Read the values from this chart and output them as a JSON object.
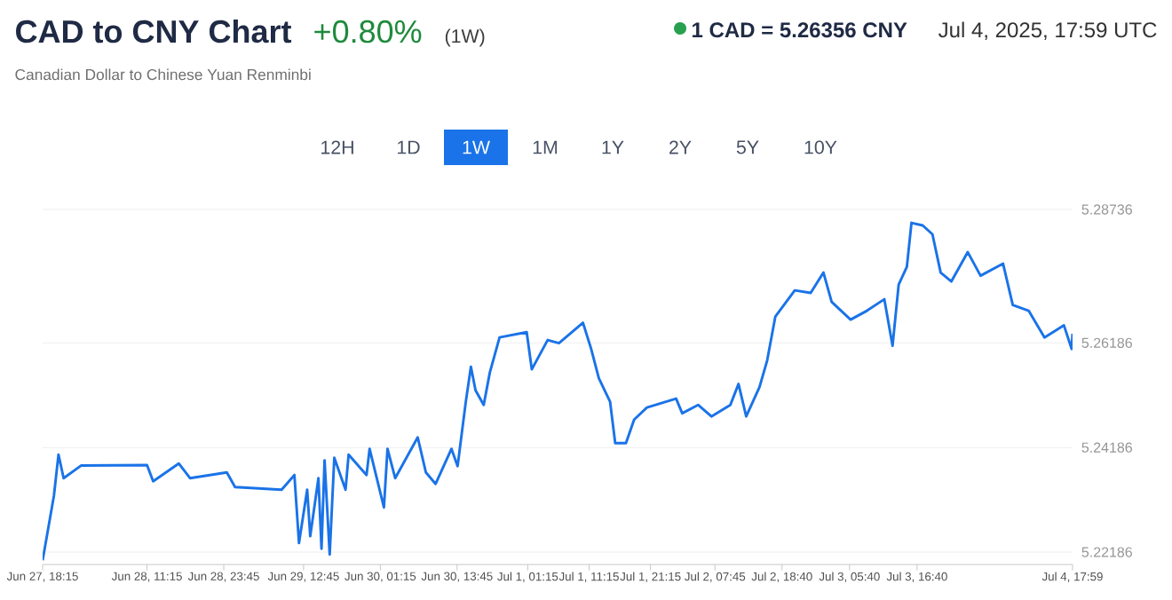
{
  "chart_data": {
    "type": "line",
    "title": "CAD to CNY Chart",
    "subtitle": "Canadian Dollar to Chinese Yuan Renminbi",
    "annotations": [
      "+0.80%",
      "(1W)",
      "1 CAD = 5.26356 CNY",
      "Jul 4, 2025, 17:59 UTC",
      "12H",
      "1D",
      "1W",
      "1M",
      "1Y",
      "2Y",
      "5Y",
      "10Y"
    ],
    "color": "#1a73e8",
    "x": [
      "2025-06-27T18:15",
      "2025-06-27T19:15",
      "2025-06-27T20:05",
      "2025-06-27T20:50",
      "2025-06-27T21:40",
      "2025-06-28T00:30",
      "2025-06-28T11:15",
      "2025-06-28T12:15",
      "2025-06-28T16:25",
      "2025-06-28T18:15",
      "2025-06-29T00:15",
      "2025-06-29T01:35",
      "2025-06-29T09:10",
      "2025-06-29T11:15",
      "2025-06-29T12:00",
      "2025-06-29T13:20",
      "2025-06-29T13:50",
      "2025-06-29T15:10",
      "2025-06-29T15:40",
      "2025-06-29T16:10",
      "2025-06-29T17:00",
      "2025-06-29T17:45",
      "2025-06-29T19:35",
      "2025-06-29T20:05",
      "2025-06-29T23:00",
      "2025-06-29T23:30",
      "2025-06-30T01:50",
      "2025-06-30T02:25",
      "2025-06-30T03:40",
      "2025-06-30T07:20",
      "2025-06-30T08:40",
      "2025-06-30T10:15",
      "2025-06-30T12:50",
      "2025-06-30T13:50",
      "2025-06-30T15:10",
      "2025-06-30T16:00",
      "2025-06-30T16:45",
      "2025-06-30T18:05",
      "2025-06-30T19:05",
      "2025-06-30T20:40",
      "2025-07-01T01:05",
      "2025-07-01T01:55",
      "2025-07-01T04:30",
      "2025-07-01T06:20",
      "2025-07-01T10:15",
      "2025-07-01T11:35",
      "2025-07-01T12:50",
      "2025-07-01T14:40",
      "2025-07-01T15:30",
      "2025-07-01T17:15",
      "2025-07-01T18:35",
      "2025-07-01T20:40",
      "2025-07-02T01:25",
      "2025-07-02T02:25",
      "2025-07-02T05:00",
      "2025-07-02T07:10",
      "2025-07-02T10:15",
      "2025-07-02T11:35",
      "2025-07-02T12:50",
      "2025-07-02T15:00",
      "2025-07-02T16:15",
      "2025-07-02T17:35",
      "2025-07-02T20:45",
      "2025-07-02T23:20",
      "2025-07-03T01:25",
      "2025-07-03T02:45",
      "2025-07-03T05:50",
      "2025-07-03T08:30",
      "2025-07-03T11:20",
      "2025-07-03T12:40",
      "2025-07-03T13:40",
      "2025-07-03T15:00",
      "2025-07-03T15:45",
      "2025-07-03T17:35",
      "2025-07-03T19:10",
      "2025-07-03T20:30",
      "2025-07-03T22:15",
      "2025-07-04T00:55",
      "2025-07-04T03:00",
      "2025-07-04T06:40",
      "2025-07-04T08:15",
      "2025-07-04T10:50",
      "2025-07-04T13:25",
      "2025-07-04T16:35",
      "2025-07-04T17:50",
      "2025-07-04T17:59"
    ],
    "values": [
      5.2203,
      5.227,
      5.2326,
      5.2405,
      5.236,
      5.2384,
      5.2385,
      5.2354,
      5.2388,
      5.236,
      5.2371,
      5.2343,
      5.2338,
      5.2366,
      5.2236,
      5.2338,
      5.2249,
      5.236,
      5.2225,
      5.2394,
      5.2214,
      5.2399,
      5.2338,
      5.2405,
      5.2366,
      5.2416,
      5.2304,
      5.2416,
      5.236,
      5.2438,
      5.2371,
      5.2349,
      5.2416,
      5.2383,
      5.2506,
      5.2573,
      5.2528,
      5.25,
      5.2562,
      5.2629,
      5.2639,
      5.2568,
      5.2624,
      5.2618,
      5.2657,
      5.2607,
      5.2551,
      5.2506,
      5.2427,
      5.2427,
      5.2472,
      5.2495,
      5.2512,
      5.2484,
      5.25,
      5.2478,
      5.25,
      5.254,
      5.2478,
      5.2534,
      5.2585,
      5.2669,
      5.2719,
      5.2714,
      5.2753,
      5.2697,
      5.2663,
      5.268,
      5.2702,
      5.2613,
      5.273,
      5.2764,
      5.2848,
      5.2843,
      5.2826,
      5.2753,
      5.2736,
      5.2792,
      5.2747,
      5.277,
      5.2691,
      5.268,
      5.2629,
      5.2652,
      5.2607,
      5.2636
    ],
    "xlim": [
      "2025-06-27T18:15",
      "2025-07-04T17:59"
    ],
    "xticks": [
      {
        "value": "2025-06-27T18:15",
        "label": "Jun 27, 18:15"
      },
      {
        "value": "2025-06-28T11:15",
        "label": "Jun 28, 11:15"
      },
      {
        "value": "2025-06-28T23:45",
        "label": "Jun 28, 23:45"
      },
      {
        "value": "2025-06-29T12:45",
        "label": "Jun 29, 12:45"
      },
      {
        "value": "2025-06-30T01:15",
        "label": "Jun 30, 01:15"
      },
      {
        "value": "2025-06-30T13:45",
        "label": "Jun 30, 13:45"
      },
      {
        "value": "2025-07-01T01:15",
        "label": "Jul 1, 01:15"
      },
      {
        "value": "2025-07-01T11:15",
        "label": "Jul 1, 11:15"
      },
      {
        "value": "2025-07-01T21:15",
        "label": "Jul 1, 21:15"
      },
      {
        "value": "2025-07-02T07:45",
        "label": "Jul 2, 07:45"
      },
      {
        "value": "2025-07-02T18:40",
        "label": "Jul 2, 18:40"
      },
      {
        "value": "2025-07-03T05:40",
        "label": "Jul 3, 05:40"
      },
      {
        "value": "2025-07-03T16:40",
        "label": "Jul 3, 16:40"
      },
      {
        "value": "2025-07-04T17:59",
        "label": "Jul 4, 17:59"
      }
    ],
    "ylim": [
      5.2195,
      5.28736
    ],
    "yticks": [
      5.22186,
      5.24186,
      5.26186,
      5.28736
    ],
    "grid": "y"
  }
}
